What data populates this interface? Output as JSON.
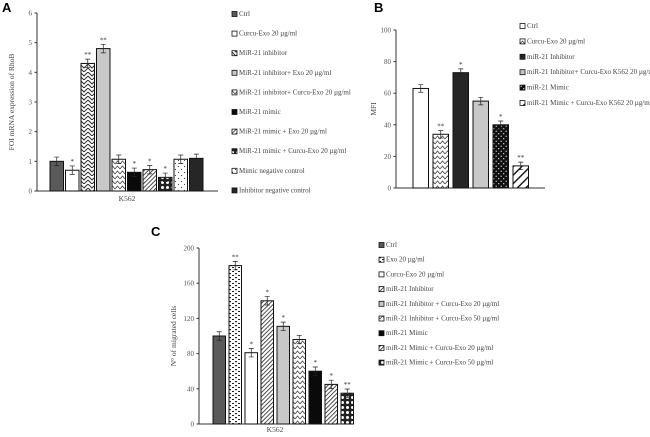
{
  "chart_data": [
    {
      "type": "bar",
      "panel": "A",
      "title": "",
      "xlabel": "K562",
      "ylabel": "FOI mRNA expression of RhoB",
      "ylim": [
        0,
        6
      ],
      "yticks": [
        "0",
        "1",
        "2",
        "3",
        "4",
        "5",
        "6"
      ],
      "legend_position": "right",
      "series": [
        {
          "name": "Ctrl",
          "value": 1.0,
          "sig": "",
          "fill": "solid-gray"
        },
        {
          "name": "Curcu-Exo  20 µg/ml",
          "value": 0.7,
          "sig": "*",
          "fill": "white"
        },
        {
          "name": "MiR-21 inhibitor",
          "value": 4.3,
          "sig": "**",
          "fill": "zigzag"
        },
        {
          "name": "MiR-21 inhibitor+ Exo 20 µg/ml",
          "value": 4.8,
          "sig": "**",
          "fill": "light-gray"
        },
        {
          "name": "MiR-21 inhibitor+ Curcu-Exo 20 µg/ml",
          "value": 1.07,
          "sig": "",
          "fill": "wave"
        },
        {
          "name": "MiR-21 mimic",
          "value": 0.63,
          "sig": "*",
          "fill": "black"
        },
        {
          "name": "MiR-21 mimic + Exo  20 µg/ml",
          "value": 0.72,
          "sig": "*",
          "fill": "hatch"
        },
        {
          "name": "MiR-21 mimic + Curcu-Exo 20 µg/ml",
          "value": 0.46,
          "sig": "*",
          "fill": "circles"
        },
        {
          "name": "Mimic negative control",
          "value": 1.07,
          "sig": "",
          "fill": "dots"
        },
        {
          "name": "Inhibitor negative control",
          "value": 1.1,
          "sig": "",
          "fill": "dark"
        }
      ]
    },
    {
      "type": "bar",
      "panel": "B",
      "title": "",
      "xlabel": "",
      "ylabel": "MFI",
      "ylim": [
        0,
        100
      ],
      "yticks": [
        "0",
        "20",
        "40",
        "60",
        "80",
        "100"
      ],
      "legend_position": "right",
      "series": [
        {
          "name": "Ctrl",
          "value": 63,
          "sig": "",
          "fill": "white"
        },
        {
          "name": "Curcu-Exo  20 µg/ml",
          "value": 34,
          "sig": "**",
          "fill": "wave"
        },
        {
          "name": "miR-21 Inhibitor",
          "value": 73,
          "sig": "*",
          "fill": "dark"
        },
        {
          "name": "miR-21 Inhibitor+ Curcu-Exo K562 20 µg/ml",
          "value": 55,
          "sig": "",
          "fill": "light-gray"
        },
        {
          "name": "miR-21 Mimic",
          "value": 40,
          "sig": "*",
          "fill": "black-dots"
        },
        {
          "name": "miR-21 Mimic + Curcu-Exo K562 20 µg/ml",
          "value": 14,
          "sig": "**",
          "fill": "wide-hatch"
        }
      ]
    },
    {
      "type": "bar",
      "panel": "C",
      "title": "",
      "xlabel": "K562",
      "ylabel": "N° of migrated cells",
      "ylim": [
        0,
        200
      ],
      "yticks": [
        "0",
        "40",
        "80",
        "120",
        "160",
        "200"
      ],
      "legend_position": "right",
      "series": [
        {
          "name": "Ctrl",
          "value": 100,
          "sig": "",
          "fill": "solid-gray"
        },
        {
          "name": "Exo 20 µg/ml",
          "value": 180,
          "sig": "**",
          "fill": "dashes"
        },
        {
          "name": "Curcu-Exo  20 µg/ml",
          "value": 81,
          "sig": "*",
          "fill": "white"
        },
        {
          "name": "miR-21 Inhibitor",
          "value": 140,
          "sig": "*",
          "fill": "hatch"
        },
        {
          "name": "miR-21 Inhibitor + Curcu-Exo 20 µg/ml",
          "value": 111,
          "sig": "*",
          "fill": "light-gray"
        },
        {
          "name": "miR-21 Inhibitor + Curcu-Exo 50 µg/ml",
          "value": 96,
          "sig": "",
          "fill": "wave"
        },
        {
          "name": "miR-21 Mimic",
          "value": 60,
          "sig": "*",
          "fill": "black"
        },
        {
          "name": "miR-21 Mimic + Curcu-Exo  20 µg/ml",
          "value": 45,
          "sig": "*",
          "fill": "hatch"
        },
        {
          "name": "miR-21 Mimic  + Curcu-Exo 50 µg/ml",
          "value": 35,
          "sig": "**",
          "fill": "circles"
        }
      ]
    }
  ]
}
